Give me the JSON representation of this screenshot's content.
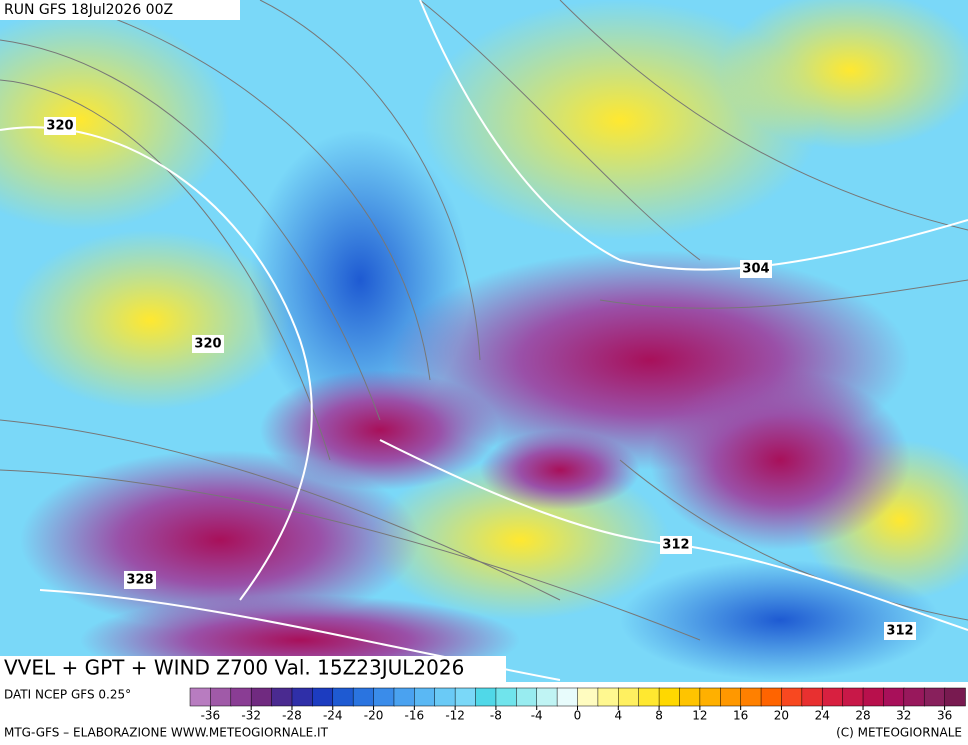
{
  "header": {
    "run": "RUN GFS 18Jul2026 00Z",
    "title": "VVEL + GPT + WIND Z700 Val. 15Z23JUL2026"
  },
  "contour_labels": [
    "320",
    "320",
    "304",
    "312",
    "328",
    "312"
  ],
  "footer": {
    "source": "DATI NCEP GFS 0.25°",
    "credit": "MTG-GFS – ELABORAZIONE WWW.METEOGIORNALE.IT",
    "copyright": "(C) METEOGIORNALE"
  },
  "colorbar": {
    "min": -38,
    "max": 38,
    "ticks": [
      -36,
      -32,
      -28,
      -24,
      -20,
      -16,
      -12,
      -8,
      -4,
      0,
      4,
      8,
      12,
      16,
      20,
      24,
      28,
      32,
      36
    ],
    "colors": [
      "#b87cc0",
      "#a05aa8",
      "#8a3d94",
      "#702a80",
      "#4a2a90",
      "#2f2fa8",
      "#1c3cc0",
      "#1e5ad2",
      "#2a74e0",
      "#3a8cea",
      "#4aa2f0",
      "#5ab8f4",
      "#6acaf6",
      "#7ad8f8",
      "#50d8e8",
      "#70e4ec",
      "#98ecf0",
      "#c0f4f4",
      "#e8fcfc",
      "#fffcc0",
      "#fff890",
      "#fff060",
      "#ffe830",
      "#ffd800",
      "#ffc400",
      "#ffb000",
      "#ff9800",
      "#ff8000",
      "#ff6400",
      "#f84820",
      "#e83030",
      "#d82040",
      "#c81848",
      "#b8104c",
      "#a8105a",
      "#98185c",
      "#88205c",
      "#781a50"
    ]
  }
}
